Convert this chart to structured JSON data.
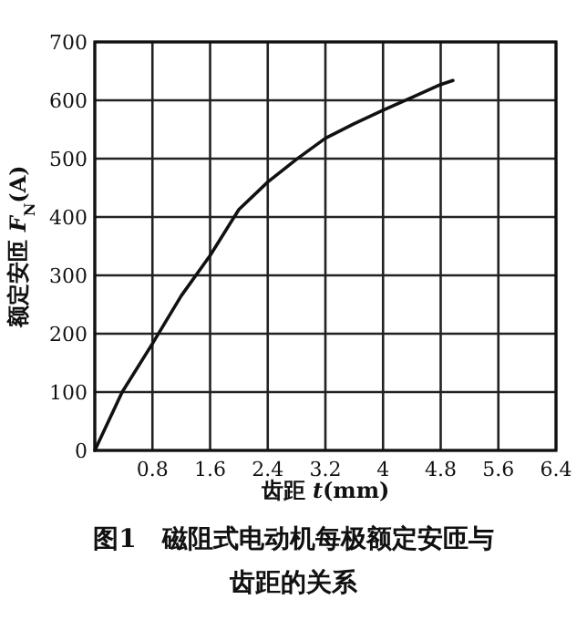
{
  "chart_data": {
    "type": "line",
    "title": "图1　磁阻式电动机每极额定安匝与齿距的关系",
    "xlabel": "齿距 *t*(mm)",
    "ylabel": "额定安匝 *F*$_{N}$(A)",
    "x": [
      0,
      0.38,
      0.8,
      1.2,
      1.6,
      2.0,
      2.4,
      2.8,
      3.2,
      3.6,
      4.0,
      4.4,
      4.8,
      4.97
    ],
    "series": [
      {
        "color": "#111111",
        "values": [
          0,
          100,
          183,
          265,
          334,
          413,
          460,
          499,
          535,
          560,
          583,
          605,
          627,
          634
        ]
      }
    ],
    "xlim": [
      0,
      6.4
    ],
    "xticks": [
      {
        "value": 0,
        "label": null
      },
      0.8,
      1.6,
      2.4,
      3.2,
      4,
      4.8,
      5.6,
      6.4
    ],
    "ylim": [
      0,
      700
    ],
    "yticks": [
      0,
      100,
      200,
      300,
      400,
      500,
      600,
      700
    ],
    "grid": true,
    "marker": "none",
    "line_style": "solid"
  }
}
